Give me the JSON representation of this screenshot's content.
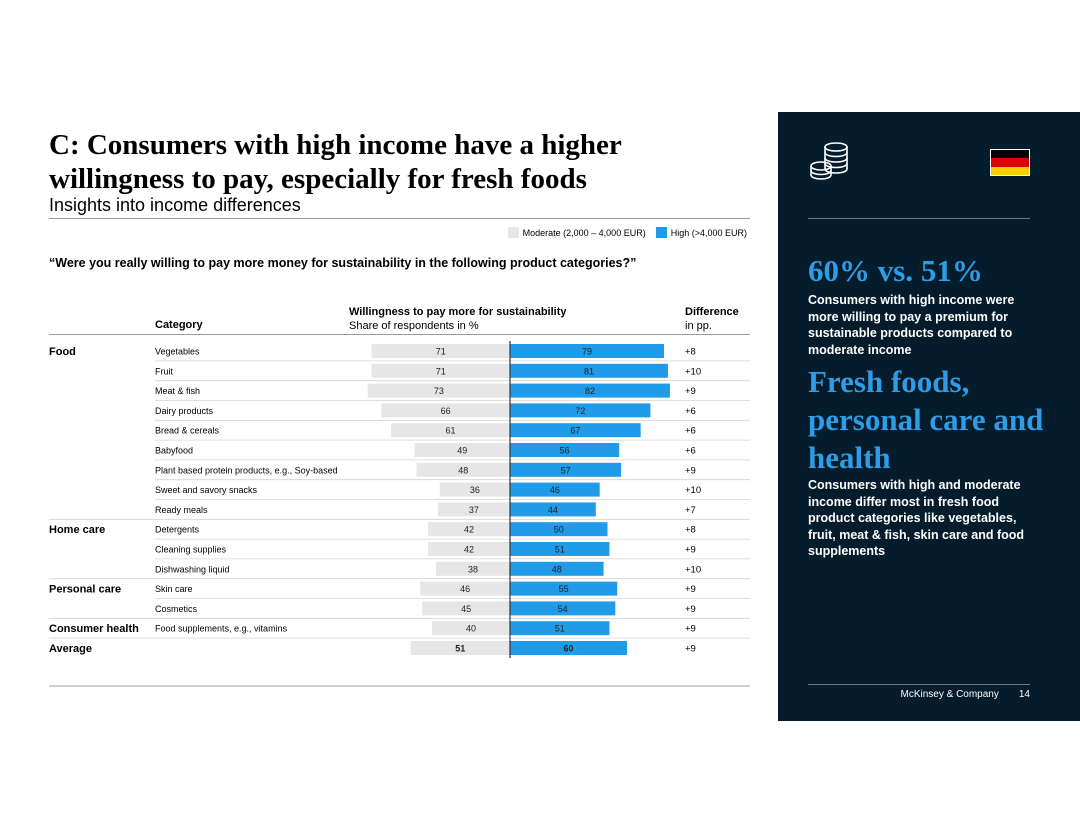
{
  "header": {
    "title": "C: Consumers with high income have a higher willingness to pay, especially for fresh foods",
    "subtitle": "Insights into income differences"
  },
  "legend": {
    "moderate": "Moderate (2,000 – 4,000 EUR)",
    "high": "High (>4,000 EUR)"
  },
  "question": "“Were you really willing to pay more money for sustainability in the following product categories?”",
  "table_headers": {
    "category": "Category",
    "willingness_title": "Willingness to pay more for sustainability",
    "willingness_sub": "Share of respondents in %",
    "difference_title": "Difference",
    "difference_sub": "in pp."
  },
  "colors": {
    "moderate": "#e6e6e6",
    "high": "#1f9be8",
    "panel": "#051c2c",
    "accent": "#2c9de6"
  },
  "chart_data": {
    "type": "bar",
    "orientation": "diverging-horizontal",
    "title": "Willingness to pay more for sustainability",
    "xlabel": "Share of respondents in %",
    "series": [
      {
        "name": "Moderate (2,000 – 4,000 EUR)",
        "values": [
          71,
          71,
          73,
          66,
          61,
          49,
          48,
          36,
          37,
          42,
          42,
          38,
          46,
          45,
          40,
          51
        ]
      },
      {
        "name": "High (>4,000 EUR)",
        "values": [
          79,
          81,
          82,
          72,
          67,
          56,
          57,
          46,
          44,
          50,
          51,
          48,
          55,
          54,
          51,
          60
        ]
      }
    ],
    "groups": [
      "Food",
      "",
      "",
      "",
      "",
      "",
      "",
      "",
      "",
      "Home care",
      "",
      "",
      "Personal care",
      "",
      "Consumer health",
      "Average"
    ],
    "categories": [
      "Vegetables",
      "Fruit",
      "Meat & fish",
      "Dairy products",
      "Bread & cereals",
      "Babyfood",
      "Plant based protein products, e.g., Soy-based",
      "Sweet and savory snacks",
      "Ready meals",
      "Detergents",
      "Cleaning supplies",
      "Dishwashing liquid",
      "Skin care",
      "Cosmetics",
      "Food supplements, e.g., vitamins",
      ""
    ],
    "differences": [
      "+8",
      "+10",
      "+9",
      "+6",
      "+6",
      "+6",
      "+9",
      "+10",
      "+7",
      "+8",
      "+9",
      "+10",
      "+9",
      "+9",
      "+9",
      "+9"
    ],
    "xlim": [
      0,
      100
    ]
  },
  "panel": {
    "stat": "60% vs. 51%",
    "stat_text": "Consumers with high income were more willing to pay a premium for sustainable products compared to moderate income",
    "headline": "Fresh foods, personal care and health",
    "headline_text": "Consumers with high and moderate income differ most in fresh food product categories like vegetables, fruit, meat & fish, skin care and food supplements",
    "company": "McKinsey & Company",
    "page_number": "14",
    "icons": [
      "coins-icon",
      "germany-flag-icon"
    ]
  }
}
